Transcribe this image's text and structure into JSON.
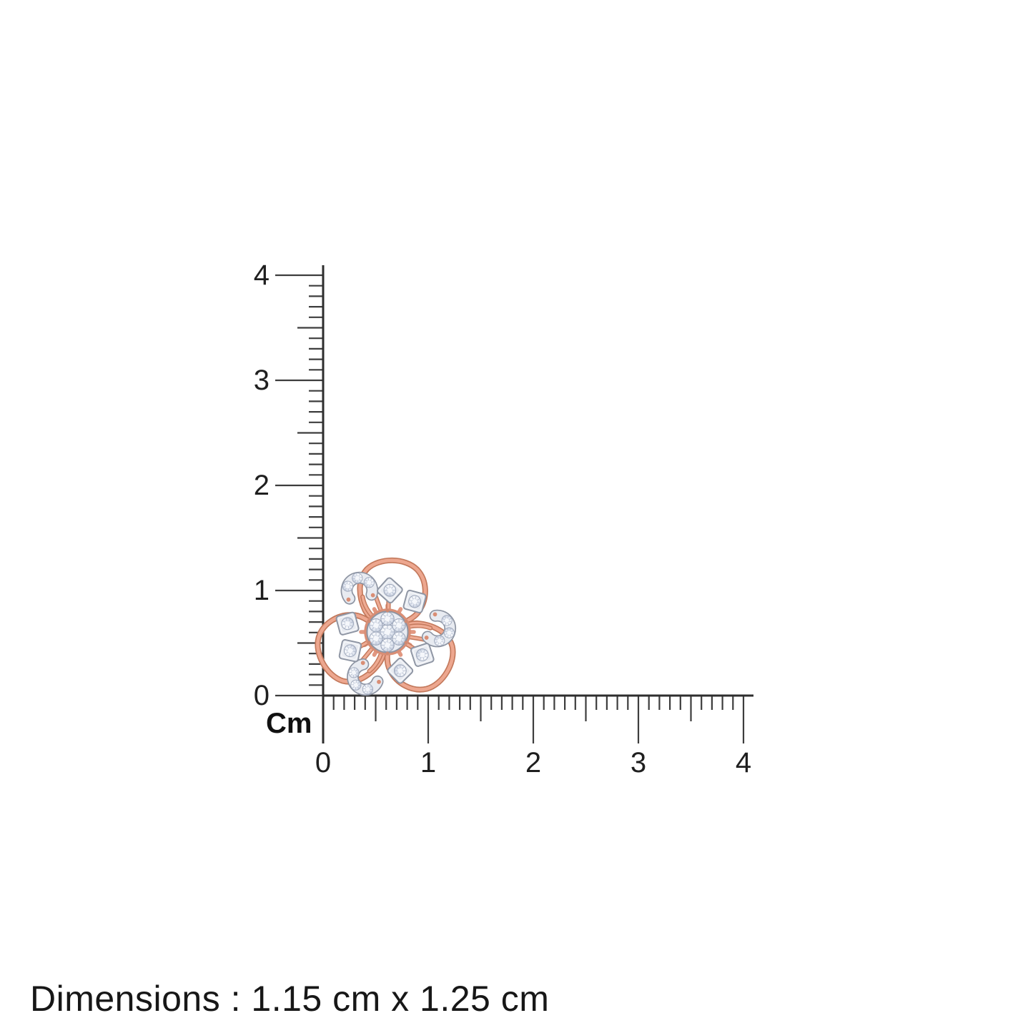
{
  "page": {
    "background": "#ffffff"
  },
  "rulers": {
    "unit_label": "Cm",
    "ticks_per_cm": 10,
    "tick_color": "#3d3d3d",
    "vertical": {
      "labels": [
        "4",
        "3",
        "2",
        "1",
        "0"
      ]
    },
    "horizontal": {
      "labels": [
        "0",
        "1",
        "2",
        "3",
        "4"
      ]
    }
  },
  "product": {
    "kind": "rose-gold-diamond-flower-stud",
    "colors": {
      "rose_gold": "#e9a08a",
      "rose_gold_dark": "#c3795c",
      "rose_gold_light": "#f3c9ba",
      "white_metal": "#e8ebf1",
      "white_metal_edge": "#8d94a2",
      "diamond": "#eef1f7",
      "diamond_facet": "#aab4c8"
    }
  },
  "caption": {
    "text": "Dimensions : 1.15 cm x 1.25 cm",
    "width_cm": "1.15",
    "height_cm": "1.25"
  }
}
